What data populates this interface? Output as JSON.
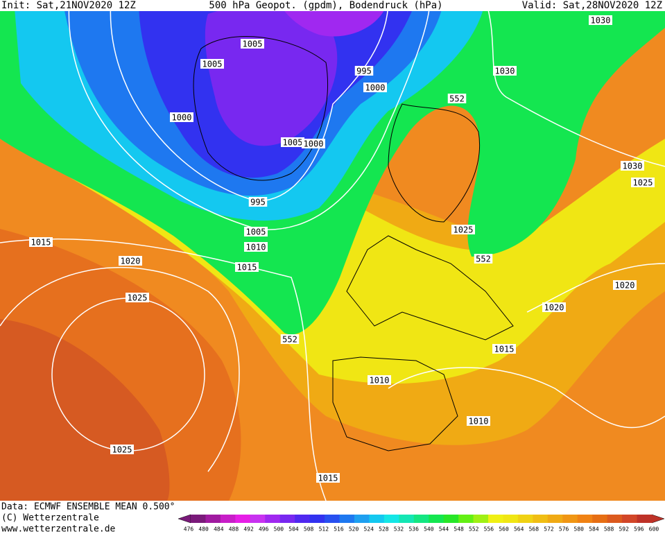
{
  "header": {
    "init": "Init: Sat,21NOV2020 12Z",
    "title": "500 hPa Geopot. (gpdm), Bodendruck (hPa)",
    "valid": "Valid: Sat,28NOV2020 12Z"
  },
  "isobar_labels": [
    1030,
    1030,
    1005,
    1005,
    995,
    1000,
    552,
    1000,
    1005,
    1000,
    1030,
    1025,
    995,
    1005,
    1025,
    1015,
    1010,
    552,
    1020,
    1015,
    1020,
    1025,
    1020,
    552,
    1015,
    1010,
    1010,
    1025,
    1015
  ],
  "footer": {
    "data": "Data: ECMWF ENSEMBLE MEAN 0.500°",
    "copyright": "(C) Wetterzentrale",
    "url": "www.wetterzentrale.de"
  },
  "color_scale": {
    "labels": [
      476,
      480,
      484,
      488,
      492,
      496,
      500,
      504,
      508,
      512,
      516,
      520,
      524,
      528,
      532,
      536,
      540,
      544,
      548,
      552,
      556,
      560,
      564,
      568,
      572,
      576,
      580,
      584,
      588,
      592,
      596,
      600
    ],
    "colors": [
      "#7a1a7a",
      "#a01aa0",
      "#c81ec8",
      "#e61ee6",
      "#c832f0",
      "#a028f0",
      "#7828f0",
      "#5028f0",
      "#3232f0",
      "#2850f0",
      "#1e78f0",
      "#1ea0f0",
      "#14c8f0",
      "#14e6e6",
      "#14e6b4",
      "#14e682",
      "#14e650",
      "#28e628",
      "#64f014",
      "#a0f014",
      "#f0f014",
      "#f0e614",
      "#f0d214",
      "#f0be14",
      "#f0aa14",
      "#f09614",
      "#f08214",
      "#e66e14",
      "#dc5a1e",
      "#d24628",
      "#be3228"
    ]
  }
}
